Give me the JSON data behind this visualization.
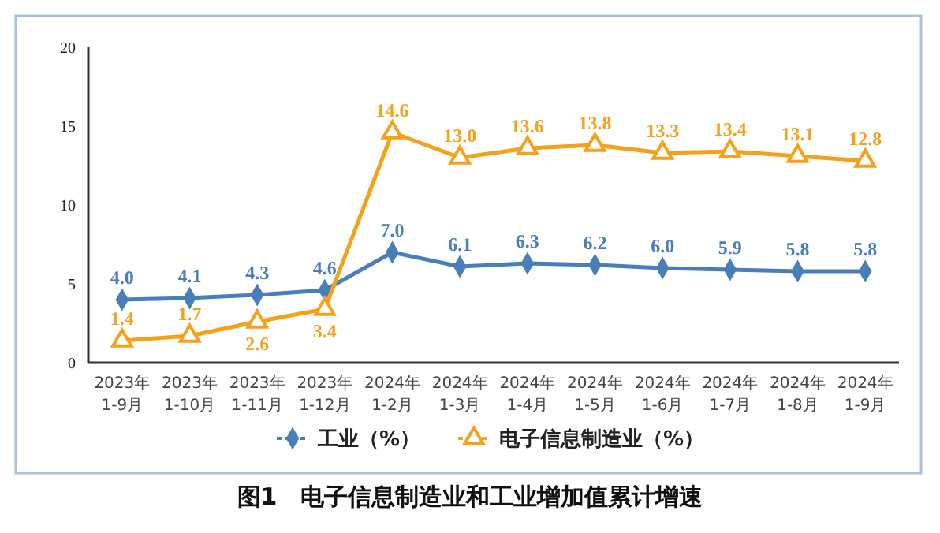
{
  "chart_data": {
    "type": "line",
    "title": "图1　电子信息制造业和工业增加值累计增速",
    "categories": [
      "2023年\n1-9月",
      "2023年\n1-10月",
      "2023年\n1-11月",
      "2023年\n1-12月",
      "2024年\n1-2月",
      "2024年\n1-3月",
      "2024年\n1-4月",
      "2024年\n1-5月",
      "2024年\n1-6月",
      "2024年\n1-7月",
      "2024年\n1-8月",
      "2024年\n1-9月"
    ],
    "series": [
      {
        "name": "工业（%）",
        "color": "#4a7ebb",
        "marker": "diamond",
        "values": [
          4.0,
          4.1,
          4.3,
          4.6,
          7.0,
          6.1,
          6.3,
          6.2,
          6.0,
          5.9,
          5.8,
          5.8
        ],
        "value_labels": [
          "4.0",
          "4.1",
          "4.3",
          "4.6",
          "7.0",
          "6.1",
          "6.3",
          "6.2",
          "6.0",
          "5.9",
          "5.8",
          "5.8"
        ]
      },
      {
        "name": "电子信息制造业（%）",
        "color": "#f5a11c",
        "marker": "triangle",
        "values": [
          1.4,
          1.7,
          2.6,
          3.4,
          14.6,
          13.0,
          13.6,
          13.8,
          13.3,
          13.4,
          13.1,
          12.8
        ],
        "value_labels": [
          "1.4",
          "1.7",
          "2.6",
          "3.4",
          "14.6",
          "13.0",
          "13.6",
          "13.8",
          "13.3",
          "13.4",
          "13.1",
          "12.8"
        ]
      }
    ],
    "ylim": [
      0,
      20
    ],
    "yticks": [
      0,
      5,
      10,
      15,
      20
    ],
    "legend": "bottom",
    "grid": false
  }
}
